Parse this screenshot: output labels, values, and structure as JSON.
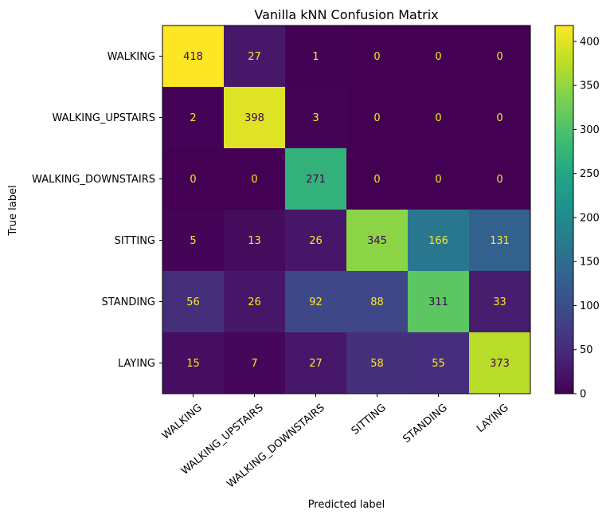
{
  "chart_data": {
    "type": "heatmap",
    "title": "Vanilla kNN Confusion Matrix",
    "xlabel": "Predicted label",
    "ylabel": "True label",
    "x_categories": [
      "WALKING",
      "WALKING_UPSTAIRS",
      "WALKING_DOWNSTAIRS",
      "SITTING",
      "STANDING",
      "LAYING"
    ],
    "y_categories": [
      "WALKING",
      "WALKING_UPSTAIRS",
      "WALKING_DOWNSTAIRS",
      "SITTING",
      "STANDING",
      "LAYING"
    ],
    "matrix": [
      [
        418,
        27,
        1,
        0,
        0,
        0
      ],
      [
        2,
        398,
        3,
        0,
        0,
        0
      ],
      [
        0,
        0,
        271,
        0,
        0,
        0
      ],
      [
        5,
        13,
        26,
        345,
        166,
        131
      ],
      [
        56,
        26,
        92,
        88,
        311,
        33
      ],
      [
        15,
        7,
        27,
        58,
        55,
        373
      ]
    ],
    "colormap": "viridis",
    "colorbar": {
      "min": 0,
      "max": 418,
      "ticks": [
        0,
        50,
        100,
        150,
        200,
        250,
        300,
        350,
        400
      ]
    },
    "grid": false,
    "x_tick_rotation_deg": 40
  }
}
